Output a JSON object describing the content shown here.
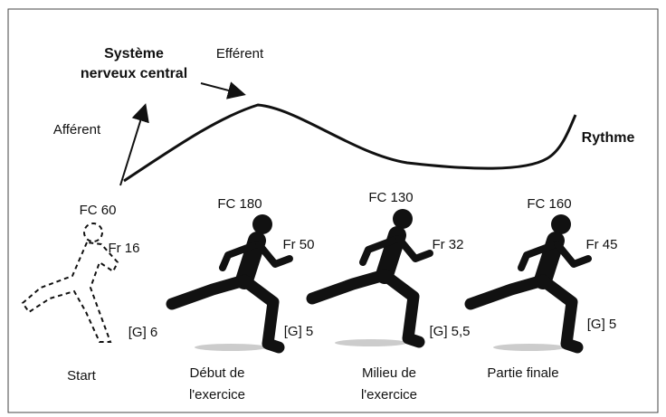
{
  "diagram": {
    "cns": [
      "Système",
      "nerveux central"
    ],
    "efferent": "Efférent",
    "afferent": "Afférent",
    "rhythm": "Rythme",
    "stages": [
      {
        "fc": "FC 60",
        "fr": "Fr 16",
        "g": "[G] 6",
        "label": [
          "Start"
        ]
      },
      {
        "fc": "FC 180",
        "fr": "Fr 50",
        "g": "[G] 5",
        "label": [
          "Début de",
          "l'exercice"
        ]
      },
      {
        "fc": "FC 130",
        "fr": "Fr 32",
        "g": "[G] 5,5",
        "label": [
          "Milieu de",
          "l'exercice"
        ]
      },
      {
        "fc": "FC 160",
        "fr": "Fr 45",
        "g": "[G] 5",
        "label": [
          "Partie finale"
        ]
      }
    ]
  }
}
